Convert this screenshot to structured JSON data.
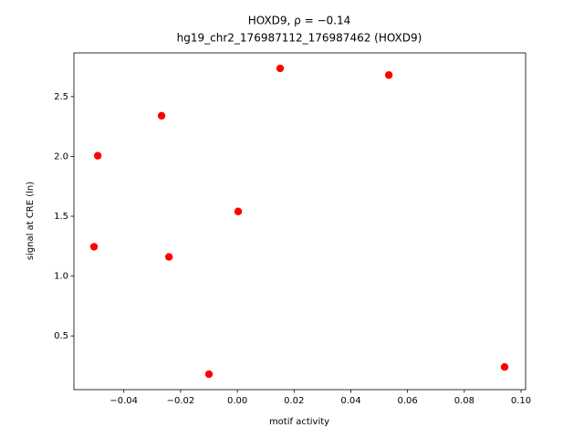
{
  "chart_data": {
    "type": "scatter",
    "title": "HOXD9, ρ = −0.14",
    "subtitle": "hg19_chr2_176987112_176987462 (HOXD9)",
    "x_label": "motif activity",
    "y_label": "signal at CRE (ln)",
    "color": "#ff0000",
    "x": [
      -0.0505,
      -0.0492,
      -0.0267,
      -0.0241,
      -0.01,
      0.0003,
      0.0151,
      0.0534,
      0.0942
    ],
    "values": [
      1.245,
      2.006,
      2.34,
      1.16,
      0.18,
      1.54,
      2.736,
      2.68,
      0.24
    ],
    "xlim": [
      -0.0576,
      0.1016
    ],
    "ylim": [
      0.051,
      2.865
    ],
    "xticks": [
      {
        "value": -0.04,
        "label": "−0.04"
      },
      {
        "value": -0.02,
        "label": "−0.02"
      },
      {
        "value": 0,
        "label": "0.00"
      },
      0.02,
      0.04,
      0.06,
      0.08,
      {
        "value": 0.1,
        "label": "0.10"
      }
    ],
    "yticks": [
      0.5,
      {
        "value": 1,
        "label": "1.0"
      },
      1.5,
      {
        "value": 2,
        "label": "2.0"
      },
      2.5
    ]
  }
}
